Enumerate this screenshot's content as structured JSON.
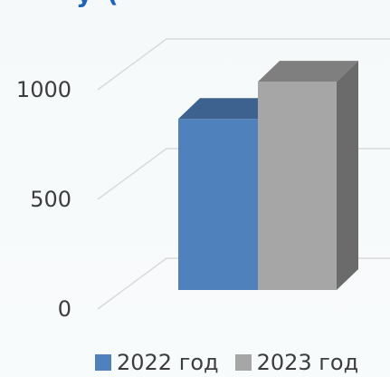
{
  "header": {
    "partial_title": "у                       ("
  },
  "chart_data": {
    "type": "bar",
    "categories": [
      "2022 год",
      "2023 год"
    ],
    "values": [
      780,
      950
    ],
    "ylim": [
      0,
      1000
    ],
    "yticks": [
      0,
      500,
      1000
    ],
    "grid": true,
    "legend_position": "bottom",
    "colors": [
      "#4f81bd",
      "#a6a6a6"
    ],
    "side_colors": [
      "#3c6392",
      "#6b6b6b"
    ],
    "top_colors": [
      "#3d628f",
      "#7f7f7f"
    ]
  }
}
